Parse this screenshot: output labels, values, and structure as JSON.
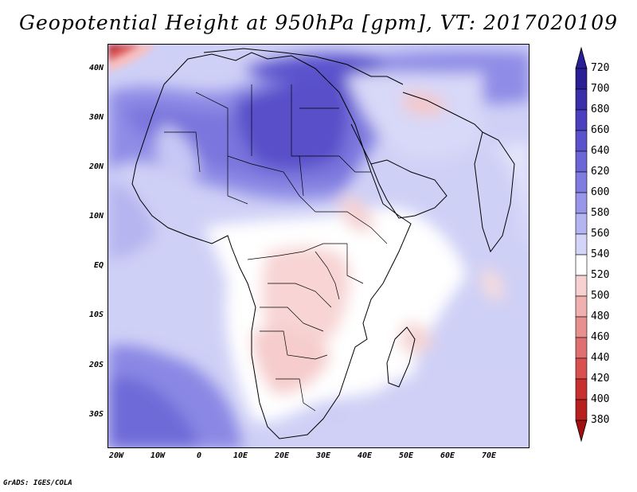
{
  "title": "Geopotential Height at 950hPa [gpm], VT: 2017020109",
  "credit": "GrADS: IGES/COLA",
  "map": {
    "lat_labels": [
      "40N",
      "30N",
      "20N",
      "10N",
      "EQ",
      "10S",
      "20S",
      "30S"
    ],
    "lon_labels": [
      "20W",
      "10W",
      "0",
      "10E",
      "20E",
      "30E",
      "40E",
      "50E",
      "60E",
      "70E"
    ],
    "lon_range": [
      -22,
      80
    ],
    "lat_range": [
      -37,
      45
    ]
  },
  "colorbar": {
    "levels": [
      "720",
      "700",
      "680",
      "660",
      "640",
      "620",
      "600",
      "580",
      "560",
      "540",
      "520",
      "500",
      "480",
      "460",
      "440",
      "420",
      "400",
      "380"
    ],
    "colors": [
      "#2a1e96",
      "#3a2eaa",
      "#4a3fbe",
      "#5a52cc",
      "#6a66d8",
      "#7e7ce2",
      "#9896ea",
      "#b4b4f2",
      "#d4d4f8",
      "#ffffff",
      "#f8d0d0",
      "#f0b0b0",
      "#e89090",
      "#e07070",
      "#d85050",
      "#c83030",
      "#b82020",
      "#a01010"
    ]
  }
}
